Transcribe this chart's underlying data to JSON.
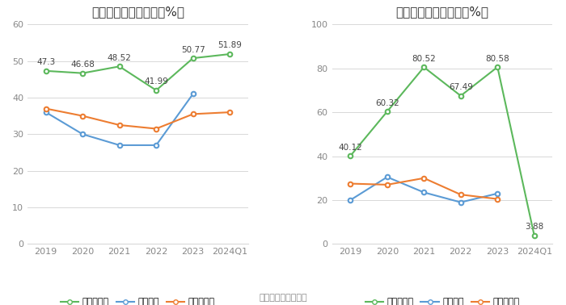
{
  "left_title": "历年毛利率变化情况（%）",
  "right_title": "历年净利率变化情况（%）",
  "xlabel": [
    "2019",
    "2020",
    "2021",
    "2022",
    "2023",
    "2024Q1"
  ],
  "gross_company": [
    47.3,
    46.68,
    48.52,
    41.99,
    50.77,
    51.89
  ],
  "gross_industry_avg": [
    36.0,
    30.0,
    27.0,
    27.0,
    41.0
  ],
  "gross_industry_median": [
    37.0,
    35.0,
    32.5,
    31.5,
    35.5,
    36.0
  ],
  "net_company": [
    40.12,
    60.32,
    80.52,
    67.49,
    80.58,
    3.88
  ],
  "net_industry_avg": [
    20.0,
    30.5,
    23.5,
    19.0,
    23.0
  ],
  "net_industry_median": [
    27.5,
    27.0,
    30.0,
    22.5,
    20.5
  ],
  "left_ylim": [
    0,
    60
  ],
  "left_yticks": [
    0,
    10,
    20,
    30,
    40,
    50,
    60
  ],
  "right_ylim": [
    0,
    100
  ],
  "right_yticks": [
    0,
    20,
    40,
    60,
    80,
    100
  ],
  "company_color": "#5cb85c",
  "industry_avg_color": "#5b9bd5",
  "industry_median_color": "#ed7d31",
  "bg_color": "#ffffff",
  "grid_color": "#d8d8d8",
  "legend_company_gross": "公司毛利率",
  "legend_company_net": "公司净利率",
  "legend_avg": "行业均值",
  "legend_median": "行业中位数",
  "footer": "数据来源：恒生聚源",
  "title_fontsize": 11,
  "tick_fontsize": 8,
  "annotation_fontsize": 7.5
}
